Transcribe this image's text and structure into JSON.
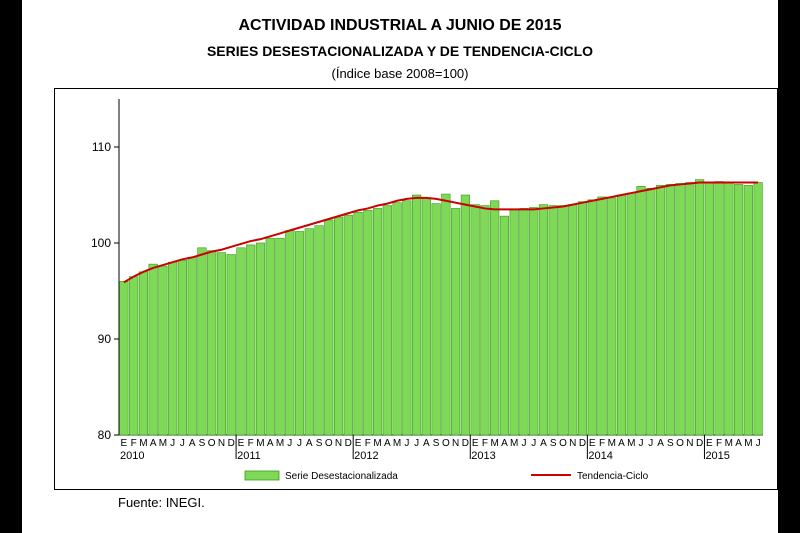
{
  "title": "ACTIVIDAD INDUSTRIAL A JUNIO DE 2015",
  "subtitle": "SERIES DESESTACIONALIZADA Y DE TENDENCIA-CICLO",
  "note": "(Índice base 2008=100)",
  "source": "Fuente: INEGI.",
  "colors": {
    "bar": "#7ed957",
    "bar_edge": "#3a9a1a",
    "trend": "#cc0000"
  },
  "chart_data": {
    "type": "bar",
    "title": "ACTIVIDAD INDUSTRIAL A JUNIO DE 2015",
    "subtitle": "SERIES DESESTACIONALIZADA Y DE TENDENCIA-CICLO",
    "ylabel": "(Índice base 2008=100)",
    "ylim": [
      80,
      115
    ],
    "yticks": [
      80,
      90,
      100,
      110
    ],
    "month_labels": [
      "E",
      "F",
      "M",
      "A",
      "M",
      "J",
      "J",
      "A",
      "S",
      "O",
      "N",
      "D"
    ],
    "years": [
      "2010",
      "2011",
      "2012",
      "2013",
      "2014",
      "2015"
    ],
    "legend_position": "bottom",
    "categories": [
      "E 2010",
      "F 2010",
      "M 2010",
      "A 2010",
      "M 2010",
      "J 2010",
      "J 2010",
      "A 2010",
      "S 2010",
      "O 2010",
      "N 2010",
      "D 2010",
      "E 2011",
      "F 2011",
      "M 2011",
      "A 2011",
      "M 2011",
      "J 2011",
      "J 2011",
      "A 2011",
      "S 2011",
      "O 2011",
      "N 2011",
      "D 2011",
      "E 2012",
      "F 2012",
      "M 2012",
      "A 2012",
      "M 2012",
      "J 2012",
      "J 2012",
      "A 2012",
      "S 2012",
      "O 2012",
      "N 2012",
      "D 2012",
      "E 2013",
      "F 2013",
      "M 2013",
      "A 2013",
      "M 2013",
      "J 2013",
      "J 2013",
      "A 2013",
      "S 2013",
      "O 2013",
      "N 2013",
      "D 2013",
      "E 2014",
      "F 2014",
      "M 2014",
      "A 2014",
      "M 2014",
      "J 2014",
      "J 2014",
      "A 2014",
      "S 2014",
      "O 2014",
      "N 2014",
      "D 2014",
      "E 2015",
      "F 2015",
      "M 2015",
      "A 2015",
      "M 2015",
      "J 2015"
    ],
    "series": [
      {
        "name": "Serie Desestacionalizada",
        "type": "bar",
        "values": [
          96.0,
          96.5,
          97.0,
          97.8,
          97.6,
          98.0,
          98.2,
          98.5,
          99.5,
          99.2,
          99.0,
          98.8,
          99.5,
          99.8,
          100.0,
          100.5,
          100.5,
          101.3,
          101.2,
          101.5,
          101.8,
          102.4,
          102.7,
          102.9,
          103.2,
          103.4,
          103.6,
          103.9,
          104.2,
          104.4,
          105.0,
          104.7,
          104.1,
          105.1,
          103.6,
          105.0,
          104.0,
          103.9,
          104.4,
          102.8,
          103.5,
          103.6,
          103.7,
          104.0,
          103.9,
          103.9,
          104.0,
          104.3,
          104.5,
          104.8,
          104.7,
          105.0,
          105.2,
          105.9,
          105.7,
          106.0,
          106.1,
          106.2,
          106.3,
          106.6,
          106.3,
          106.4,
          106.3,
          106.1,
          106.0,
          106.3
        ]
      },
      {
        "name": "Tendencia-Ciclo",
        "type": "line",
        "values": [
          95.9,
          96.5,
          97.0,
          97.4,
          97.7,
          98.0,
          98.3,
          98.5,
          98.8,
          99.1,
          99.3,
          99.6,
          99.9,
          100.2,
          100.4,
          100.7,
          101.0,
          101.3,
          101.6,
          101.9,
          102.2,
          102.5,
          102.8,
          103.1,
          103.4,
          103.6,
          103.9,
          104.1,
          104.4,
          104.6,
          104.7,
          104.7,
          104.6,
          104.4,
          104.2,
          104.0,
          103.8,
          103.6,
          103.5,
          103.5,
          103.5,
          103.5,
          103.5,
          103.6,
          103.7,
          103.8,
          104.0,
          104.2,
          104.4,
          104.6,
          104.8,
          105.0,
          105.2,
          105.4,
          105.6,
          105.8,
          106.0,
          106.1,
          106.2,
          106.3,
          106.3,
          106.3,
          106.3,
          106.3,
          106.3,
          106.3
        ]
      }
    ]
  }
}
